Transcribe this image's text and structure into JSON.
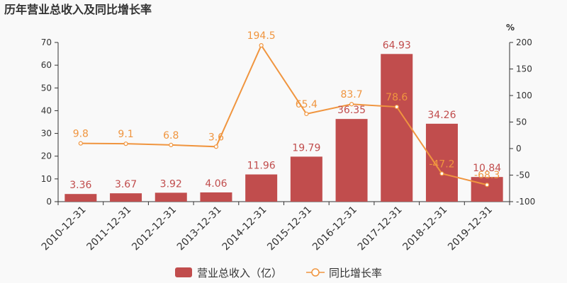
{
  "chart_data": {
    "type": "bar",
    "title": "历年营业总收入及同比增长率",
    "categories": [
      "2010-12-31",
      "2011-12-31",
      "2012-12-31",
      "2013-12-31",
      "2014-12-31",
      "2015-12-31",
      "2016-12-31",
      "2017-12-31",
      "2018-12-31",
      "2019-12-31"
    ],
    "series": [
      {
        "name": "营业总收入（亿）",
        "type": "bar",
        "axis": "left",
        "color": "#c14d4d",
        "values": [
          3.36,
          3.67,
          3.92,
          4.06,
          11.96,
          19.79,
          36.35,
          64.93,
          34.26,
          10.84
        ]
      },
      {
        "name": "同比增长率",
        "type": "line",
        "axis": "right",
        "color": "#f0953f",
        "values": [
          9.8,
          9.1,
          6.8,
          3.6,
          194.5,
          65.4,
          83.7,
          78.6,
          -47.2,
          -68.3
        ]
      }
    ],
    "ylim_left": [
      0,
      70
    ],
    "yticks_left": [
      0,
      10,
      20,
      30,
      40,
      50,
      60,
      70
    ],
    "ylim_right": [
      -100,
      200
    ],
    "yticks_right": [
      -100,
      -50,
      0,
      50,
      100,
      150,
      200
    ],
    "ylabel_right": "%",
    "legend_position": "bottom-center",
    "grid": false
  }
}
